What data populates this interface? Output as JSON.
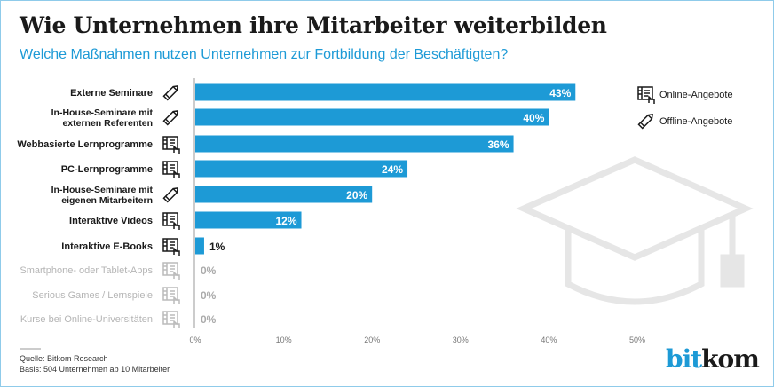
{
  "title": "Wie Unternehmen ihre Mitarbeiter weiterbilden",
  "subtitle": "Welche Maßnahmen nutzen Unternehmen zur Fortbildung der Beschäftigten?",
  "chart_data": {
    "type": "bar",
    "orientation": "horizontal",
    "categories": [
      "Externe Seminare",
      "In-House-Seminare mit externen Referenten",
      "Webbasierte Lernprogramme",
      "PC-Lernprogramme",
      "In-House-Seminare mit eigenen Mitarbeitern",
      "Interaktive Videos",
      "Interaktive E-Books",
      "Smartphone- oder Tablet-Apps",
      "Serious Games / Lernspiele",
      "Kurse bei Online-Universitäten"
    ],
    "values": [
      43,
      40,
      36,
      24,
      20,
      12,
      1,
      0,
      0,
      0
    ],
    "value_labels": [
      "43%",
      "40%",
      "36%",
      "24%",
      "20%",
      "12%",
      "1%",
      "0%",
      "0%",
      "0%"
    ],
    "category_type": [
      "offline",
      "offline",
      "online",
      "online",
      "offline",
      "online",
      "online",
      "online",
      "online",
      "online"
    ],
    "xlim": [
      0,
      50
    ],
    "xticks": [
      "0%",
      "10%",
      "20%",
      "30%",
      "40%",
      "50%"
    ],
    "legend": {
      "placement": "top-right",
      "items": [
        {
          "icon": "tablet-touch-icon",
          "label": "Online-Angebote"
        },
        {
          "icon": "pencil-icon",
          "label": "Offline-Angebote"
        }
      ]
    },
    "bar_color": "#1d9ad6",
    "grid": false
  },
  "footer": {
    "source": "Quelle: Bitkom Research",
    "basis": "Basis: 504 Unternehmen ab 10 Mitarbeiter"
  },
  "logo": {
    "part1": "bit",
    "part2": "kom"
  }
}
